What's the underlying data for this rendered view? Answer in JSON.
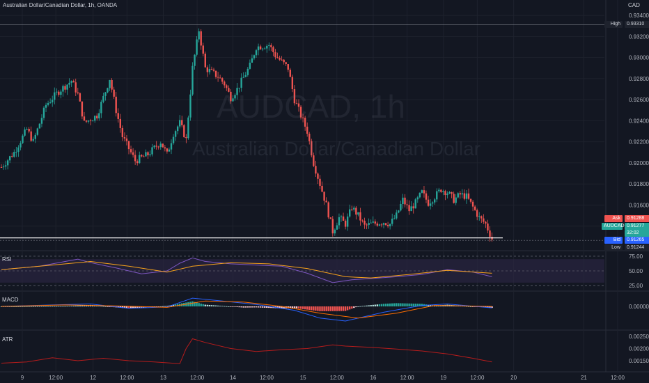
{
  "header": {
    "symbol_title": "Australian Dollar/Canadian Dollar, 1h, OANDA",
    "currency": "CAD"
  },
  "watermark": {
    "ticker": "AUDCAD, 1h",
    "name": "Australian Dollar/Canadian Dollar"
  },
  "colors": {
    "background": "#131722",
    "up": "#26a69a",
    "down": "#ef5350",
    "grid": "#1e222d",
    "rsi_line": "#7e57c2",
    "rsi_ma": "#f7a21b",
    "rsi_band": "#2a2540",
    "macd_line": "#2962ff",
    "signal_line": "#ff6d00",
    "atr_line": "#b71c1c"
  },
  "tags": {
    "high": {
      "label": "High",
      "value": "0.93310"
    },
    "ask": {
      "label": "Ask",
      "value": "0.91288"
    },
    "symbol": {
      "label": "AUDCAD",
      "value": "0.91277"
    },
    "countdown": "32:02",
    "bid": {
      "label": "Bid",
      "value": "0.91265"
    },
    "low": {
      "label": "Low",
      "value": "0.91244"
    }
  },
  "panes": {
    "rsi": {
      "label": "RSI"
    },
    "macd": {
      "label": "MACD"
    },
    "atr": {
      "label": "ATR"
    }
  },
  "chart_data": {
    "type": "candlestick",
    "price_axis": {
      "range": [
        0.9118,
        0.9348
      ],
      "ticks": [
        "0.93400",
        "0.93200",
        "0.93000",
        "0.92800",
        "0.92600",
        "0.92400",
        "0.92200",
        "0.92000",
        "0.91800",
        "0.91600",
        "0.91400"
      ]
    },
    "rsi_axis": {
      "range": [
        18,
        82
      ],
      "ticks": [
        "75.00",
        "50.00",
        "25.00"
      ],
      "band": [
        30,
        70
      ]
    },
    "macd_axis": {
      "ticks": [
        "0.00000"
      ]
    },
    "atr_axis": {
      "range": [
        0.0011,
        0.0027
      ],
      "ticks": [
        "0.00250",
        "0.00200",
        "0.00150"
      ]
    },
    "time_axis": {
      "labels": [
        "9",
        "12:00",
        "12",
        "12:00",
        "13",
        "12:00",
        "14",
        "12:00",
        "15",
        "12:00",
        "16",
        "12:00",
        "19",
        "12:00",
        "20",
        "21",
        "12:00"
      ],
      "positions": [
        0,
        5.35,
        11.3,
        16.7,
        22.5,
        27.9,
        33.6,
        39.0,
        44.8,
        50.2,
        56.0,
        61.4,
        67.2,
        72.6,
        78.4,
        89.6,
        95.0
      ]
    },
    "current_price": 0.91277,
    "high_line": 0.9331,
    "price_path": [
      [
        0,
        0.9196
      ],
      [
        2,
        0.921
      ],
      [
        4,
        0.9232
      ],
      [
        5,
        0.922
      ],
      [
        7,
        0.9255
      ],
      [
        9,
        0.9268
      ],
      [
        11,
        0.9278
      ],
      [
        12,
        0.9265
      ],
      [
        13,
        0.9238
      ],
      [
        15,
        0.9245
      ],
      [
        16,
        0.9262
      ],
      [
        17,
        0.928
      ],
      [
        18,
        0.925
      ],
      [
        19,
        0.9225
      ],
      [
        21,
        0.9202
      ],
      [
        23,
        0.9208
      ],
      [
        25,
        0.922
      ],
      [
        26,
        0.9208
      ],
      [
        27,
        0.9228
      ],
      [
        28,
        0.9238
      ],
      [
        29,
        0.9222
      ],
      [
        30,
        0.929
      ],
      [
        31,
        0.9326
      ],
      [
        32,
        0.929
      ],
      [
        34,
        0.9282
      ],
      [
        35,
        0.9275
      ],
      [
        36,
        0.9262
      ],
      [
        37,
        0.927
      ],
      [
        39,
        0.9292
      ],
      [
        40,
        0.931
      ],
      [
        42,
        0.9312
      ],
      [
        43,
        0.9302
      ],
      [
        44,
        0.9296
      ],
      [
        45,
        0.929
      ],
      [
        46,
        0.926
      ],
      [
        48,
        0.923
      ],
      [
        49,
        0.92
      ],
      [
        50,
        0.918
      ],
      [
        51,
        0.916
      ],
      [
        52,
        0.9135
      ],
      [
        53,
        0.9148
      ],
      [
        54,
        0.9142
      ],
      [
        55,
        0.9158
      ],
      [
        56,
        0.915
      ],
      [
        57,
        0.914
      ],
      [
        58,
        0.9142
      ],
      [
        60,
        0.9144
      ],
      [
        61,
        0.9142
      ],
      [
        62,
        0.915
      ],
      [
        63,
        0.9165
      ],
      [
        64,
        0.9155
      ],
      [
        65,
        0.9162
      ],
      [
        66,
        0.9172
      ],
      [
        67,
        0.9162
      ],
      [
        68,
        0.9168
      ],
      [
        69,
        0.9175
      ],
      [
        70,
        0.9172
      ],
      [
        71,
        0.9165
      ],
      [
        72,
        0.917
      ],
      [
        73,
        0.9168
      ],
      [
        74,
        0.9158
      ],
      [
        75,
        0.9148
      ],
      [
        76,
        0.9142
      ],
      [
        77,
        0.9128
      ]
    ],
    "rsi_path": [
      [
        0,
        52
      ],
      [
        6,
        58
      ],
      [
        12,
        70
      ],
      [
        14,
        64
      ],
      [
        18,
        55
      ],
      [
        22,
        45
      ],
      [
        26,
        50
      ],
      [
        28,
        63
      ],
      [
        30,
        72
      ],
      [
        32,
        66
      ],
      [
        36,
        62
      ],
      [
        40,
        60
      ],
      [
        44,
        58
      ],
      [
        48,
        46
      ],
      [
        52,
        30
      ],
      [
        55,
        35
      ],
      [
        58,
        37
      ],
      [
        62,
        40
      ],
      [
        66,
        44
      ],
      [
        70,
        52
      ],
      [
        74,
        48
      ],
      [
        77,
        40
      ]
    ],
    "rsi_ma_path": [
      [
        0,
        52
      ],
      [
        8,
        60
      ],
      [
        14,
        66
      ],
      [
        20,
        58
      ],
      [
        26,
        48
      ],
      [
        30,
        58
      ],
      [
        36,
        64
      ],
      [
        42,
        62
      ],
      [
        48,
        54
      ],
      [
        54,
        40
      ],
      [
        58,
        38
      ],
      [
        64,
        44
      ],
      [
        70,
        51
      ],
      [
        77,
        46
      ]
    ],
    "macd_path": [
      [
        0,
        0.0
      ],
      [
        8,
        0.15
      ],
      [
        14,
        0.25
      ],
      [
        20,
        -0.2
      ],
      [
        26,
        -0.05
      ],
      [
        30,
        0.85
      ],
      [
        34,
        0.6
      ],
      [
        40,
        0.2
      ],
      [
        46,
        -0.4
      ],
      [
        50,
        -1.2
      ],
      [
        54,
        -1.5
      ],
      [
        60,
        -0.6
      ],
      [
        66,
        0.1
      ],
      [
        70,
        0.25
      ],
      [
        77,
        -0.15
      ]
    ],
    "signal_path": [
      [
        0,
        0.0
      ],
      [
        10,
        0.15
      ],
      [
        18,
        0.05
      ],
      [
        26,
        -0.1
      ],
      [
        32,
        0.55
      ],
      [
        38,
        0.45
      ],
      [
        44,
        0.0
      ],
      [
        50,
        -0.7
      ],
      [
        56,
        -1.2
      ],
      [
        62,
        -0.7
      ],
      [
        68,
        0.1
      ],
      [
        77,
        0.0
      ]
    ],
    "atr_path": [
      [
        0,
        0.0014
      ],
      [
        4,
        0.00145
      ],
      [
        8,
        0.00162
      ],
      [
        12,
        0.0015
      ],
      [
        16,
        0.0016
      ],
      [
        20,
        0.0015
      ],
      [
        24,
        0.00145
      ],
      [
        28,
        0.00138
      ],
      [
        29,
        0.002
      ],
      [
        30,
        0.0024
      ],
      [
        32,
        0.00225
      ],
      [
        36,
        0.002
      ],
      [
        40,
        0.00188
      ],
      [
        44,
        0.00195
      ],
      [
        48,
        0.002
      ],
      [
        52,
        0.00215
      ],
      [
        54,
        0.0021
      ],
      [
        58,
        0.00205
      ],
      [
        62,
        0.00198
      ],
      [
        66,
        0.0019
      ],
      [
        70,
        0.00178
      ],
      [
        74,
        0.0016
      ],
      [
        77,
        0.00145
      ]
    ]
  }
}
